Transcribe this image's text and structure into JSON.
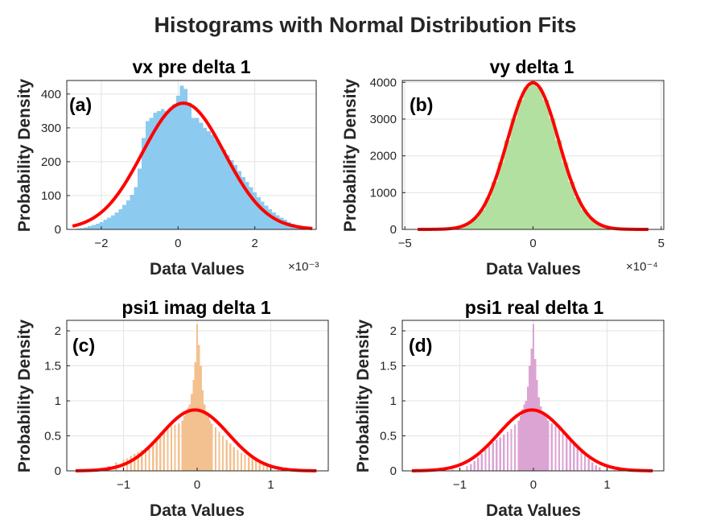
{
  "figure": {
    "suptitle": "Histograms with Normal Distribution Fits"
  },
  "colors": {
    "fit_line": "#ff0000",
    "panel_a": "#8ccbef",
    "panel_b": "#b2e0a0",
    "panel_c": "#f3c18f",
    "panel_d": "#dca4d3"
  },
  "chart_data": [
    {
      "type": "histogram+line",
      "panel_label": "(a)",
      "title": "vx pre delta 1",
      "xlabel": "Data Values",
      "ylabel": "Probability Density",
      "x_exponent": "×10⁻³",
      "xlim": [
        -2.9,
        3.6
      ],
      "ylim": [
        0,
        440
      ],
      "xticks": [
        -2,
        0,
        2
      ],
      "yticks": [
        0,
        100,
        200,
        300,
        400
      ],
      "grid": true,
      "fit": {
        "mean": 0.14,
        "std": 1.07,
        "peak": 373,
        "xrange": [
          -2.75,
          3.5
        ]
      },
      "histogram": {
        "bin_width": 0.1,
        "bins": [
          [
            -2.6,
            2
          ],
          [
            -2.5,
            4
          ],
          [
            -2.4,
            6
          ],
          [
            -2.3,
            9
          ],
          [
            -2.2,
            13
          ],
          [
            -2.1,
            17
          ],
          [
            -2.0,
            22
          ],
          [
            -1.9,
            28
          ],
          [
            -1.8,
            35
          ],
          [
            -1.7,
            42
          ],
          [
            -1.6,
            50
          ],
          [
            -1.5,
            60
          ],
          [
            -1.4,
            72
          ],
          [
            -1.3,
            86
          ],
          [
            -1.2,
            102
          ],
          [
            -1.1,
            125
          ],
          [
            -1.0,
            180
          ],
          [
            -0.9,
            270
          ],
          [
            -0.8,
            320
          ],
          [
            -0.7,
            330
          ],
          [
            -0.6,
            345
          ],
          [
            -0.5,
            350
          ],
          [
            -0.4,
            355
          ],
          [
            -0.3,
            350
          ],
          [
            -0.2,
            358
          ],
          [
            -0.1,
            370
          ],
          [
            0.0,
            395
          ],
          [
            0.1,
            425
          ],
          [
            0.2,
            415
          ],
          [
            0.3,
            375
          ],
          [
            0.4,
            330
          ],
          [
            0.5,
            330
          ],
          [
            0.6,
            315
          ],
          [
            0.7,
            300
          ],
          [
            0.8,
            290
          ],
          [
            0.9,
            280
          ],
          [
            1.0,
            265
          ],
          [
            1.1,
            250
          ],
          [
            1.2,
            235
          ],
          [
            1.3,
            220
          ],
          [
            1.4,
            205
          ],
          [
            1.5,
            190
          ],
          [
            1.6,
            172
          ],
          [
            1.7,
            155
          ],
          [
            1.8,
            140
          ],
          [
            1.9,
            125
          ],
          [
            2.0,
            110
          ],
          [
            2.1,
            95
          ],
          [
            2.2,
            82
          ],
          [
            2.3,
            70
          ],
          [
            2.4,
            60
          ],
          [
            2.5,
            50
          ],
          [
            2.6,
            42
          ],
          [
            2.7,
            35
          ],
          [
            2.8,
            28
          ],
          [
            2.9,
            22
          ],
          [
            3.0,
            17
          ],
          [
            3.1,
            13
          ],
          [
            3.2,
            10
          ],
          [
            3.3,
            7
          ]
        ]
      }
    },
    {
      "type": "histogram+line",
      "panel_label": "(b)",
      "title": "vy delta 1",
      "xlabel": "Data Values",
      "ylabel": "Probability Density",
      "x_exponent": "×10⁻⁴",
      "xlim": [
        -5.1,
        5.1
      ],
      "ylim": [
        0,
        4050
      ],
      "xticks": [
        -5,
        0,
        5
      ],
      "yticks": [
        0,
        1000,
        2000,
        3000,
        4000
      ],
      "grid": true,
      "fit": {
        "mean": 0.0,
        "std": 1.0,
        "peak": 3990,
        "xrange": [
          -4.5,
          4.5
        ]
      },
      "histogram": {
        "bin_width": 0.25,
        "bins": [
          [
            -3.75,
            2
          ],
          [
            -3.5,
            9
          ],
          [
            -3.25,
            20
          ],
          [
            -3.0,
            44
          ],
          [
            -2.75,
            91
          ],
          [
            -2.5,
            175
          ],
          [
            -2.25,
            318
          ],
          [
            -2.0,
            540
          ],
          [
            -1.75,
            862
          ],
          [
            -1.5,
            1293
          ],
          [
            -1.25,
            1823
          ],
          [
            -1.0,
            2420
          ],
          [
            -0.75,
            3018
          ],
          [
            -0.5,
            3520
          ],
          [
            -0.25,
            3860
          ],
          [
            0.0,
            3990
          ],
          [
            0.25,
            3860
          ],
          [
            0.5,
            3520
          ],
          [
            0.75,
            3018
          ],
          [
            1.0,
            2420
          ],
          [
            1.25,
            1823
          ],
          [
            1.5,
            1293
          ],
          [
            1.75,
            862
          ],
          [
            2.0,
            540
          ],
          [
            2.25,
            318
          ],
          [
            2.5,
            175
          ],
          [
            2.75,
            91
          ],
          [
            3.0,
            44
          ],
          [
            3.25,
            20
          ],
          [
            3.5,
            9
          ],
          [
            3.75,
            2
          ]
        ]
      }
    },
    {
      "type": "histogram+line",
      "panel_label": "(c)",
      "title": "psi1 imag delta 1",
      "xlabel": "Data Values",
      "ylabel": "Probability Density",
      "xlim": [
        -1.77,
        1.78
      ],
      "ylim": [
        0,
        2.15
      ],
      "xticks": [
        -1,
        0,
        1
      ],
      "yticks": [
        0,
        0.5,
        1,
        1.5,
        2
      ],
      "grid": true,
      "fit": {
        "mean": -0.03,
        "std": 0.455,
        "peak": 0.87,
        "xrange": [
          -1.65,
          1.62
        ]
      },
      "histogram": {
        "bin_width": 0.025,
        "bins": [
          [
            -1.4,
            0.02
          ],
          [
            -1.3,
            0.04
          ],
          [
            -1.2,
            0.07
          ],
          [
            -1.1,
            0.12
          ],
          [
            -1.0,
            0.16
          ],
          [
            -0.95,
            0.18
          ],
          [
            -0.9,
            0.21
          ],
          [
            -0.85,
            0.24
          ],
          [
            -0.8,
            0.27
          ],
          [
            -0.75,
            0.3
          ],
          [
            -0.7,
            0.33
          ],
          [
            -0.65,
            0.37
          ],
          [
            -0.6,
            0.41
          ],
          [
            -0.55,
            0.45
          ],
          [
            -0.5,
            0.5
          ],
          [
            -0.45,
            0.55
          ],
          [
            -0.4,
            0.6
          ],
          [
            -0.35,
            0.64
          ],
          [
            -0.3,
            0.66
          ],
          [
            -0.25,
            0.68
          ],
          [
            -0.2,
            0.72
          ],
          [
            -0.175,
            0.78
          ],
          [
            -0.15,
            0.85
          ],
          [
            -0.125,
            0.9
          ],
          [
            -0.1,
            0.95
          ],
          [
            -0.075,
            1.1
          ],
          [
            -0.05,
            1.3
          ],
          [
            -0.025,
            1.55
          ],
          [
            0.0,
            2.1
          ],
          [
            0.025,
            1.8
          ],
          [
            0.05,
            1.5
          ],
          [
            0.075,
            1.15
          ],
          [
            0.1,
            0.95
          ],
          [
            0.125,
            0.85
          ],
          [
            0.15,
            0.78
          ],
          [
            0.175,
            0.72
          ],
          [
            0.2,
            0.67
          ],
          [
            0.25,
            0.62
          ],
          [
            0.3,
            0.56
          ],
          [
            0.35,
            0.5
          ],
          [
            0.4,
            0.44
          ],
          [
            0.45,
            0.39
          ],
          [
            0.5,
            0.34
          ],
          [
            0.55,
            0.3
          ],
          [
            0.6,
            0.26
          ],
          [
            0.65,
            0.23
          ],
          [
            0.7,
            0.2
          ],
          [
            0.75,
            0.18
          ],
          [
            0.8,
            0.16
          ],
          [
            0.85,
            0.14
          ],
          [
            0.9,
            0.12
          ],
          [
            0.95,
            0.11
          ],
          [
            1.0,
            0.1
          ],
          [
            1.1,
            0.07
          ],
          [
            1.2,
            0.05
          ],
          [
            1.3,
            0.03
          ],
          [
            1.4,
            0.02
          ]
        ]
      }
    },
    {
      "type": "histogram+line",
      "panel_label": "(d)",
      "title": "psi1 real delta 1",
      "xlabel": "Data Values",
      "ylabel": "Probability Density",
      "xlim": [
        -1.78,
        1.77
      ],
      "ylim": [
        0,
        2.15
      ],
      "xticks": [
        -1,
        0,
        1
      ],
      "yticks": [
        0,
        0.5,
        1,
        1.5,
        2
      ],
      "grid": true,
      "fit": {
        "mean": -0.02,
        "std": 0.455,
        "peak": 0.87,
        "xrange": [
          -1.65,
          1.62
        ]
      },
      "histogram": {
        "bin_width": 0.025,
        "bins": [
          [
            -1.1,
            0.02
          ],
          [
            -1.0,
            0.04
          ],
          [
            -0.9,
            0.07
          ],
          [
            -0.85,
            0.1
          ],
          [
            -0.8,
            0.14
          ],
          [
            -0.75,
            0.19
          ],
          [
            -0.7,
            0.24
          ],
          [
            -0.65,
            0.3
          ],
          [
            -0.6,
            0.35
          ],
          [
            -0.55,
            0.4
          ],
          [
            -0.5,
            0.44
          ],
          [
            -0.45,
            0.48
          ],
          [
            -0.4,
            0.52
          ],
          [
            -0.35,
            0.56
          ],
          [
            -0.3,
            0.6
          ],
          [
            -0.25,
            0.66
          ],
          [
            -0.2,
            0.72
          ],
          [
            -0.175,
            0.78
          ],
          [
            -0.15,
            0.88
          ],
          [
            -0.125,
            0.95
          ],
          [
            -0.1,
            1.0
          ],
          [
            -0.075,
            1.2
          ],
          [
            -0.05,
            1.5
          ],
          [
            -0.025,
            1.75
          ],
          [
            0.0,
            2.1
          ],
          [
            0.025,
            1.6
          ],
          [
            0.05,
            1.3
          ],
          [
            0.075,
            1.05
          ],
          [
            0.1,
            0.92
          ],
          [
            0.125,
            0.85
          ],
          [
            0.15,
            0.8
          ],
          [
            0.175,
            0.76
          ],
          [
            0.2,
            0.72
          ],
          [
            0.25,
            0.68
          ],
          [
            0.3,
            0.64
          ],
          [
            0.35,
            0.6
          ],
          [
            0.4,
            0.56
          ],
          [
            0.45,
            0.5
          ],
          [
            0.5,
            0.44
          ],
          [
            0.55,
            0.38
          ],
          [
            0.6,
            0.32
          ],
          [
            0.65,
            0.27
          ],
          [
            0.7,
            0.22
          ],
          [
            0.75,
            0.17
          ],
          [
            0.8,
            0.12
          ],
          [
            0.85,
            0.08
          ],
          [
            0.9,
            0.05
          ],
          [
            1.0,
            0.03
          ],
          [
            1.1,
            0.01
          ]
        ]
      }
    }
  ]
}
